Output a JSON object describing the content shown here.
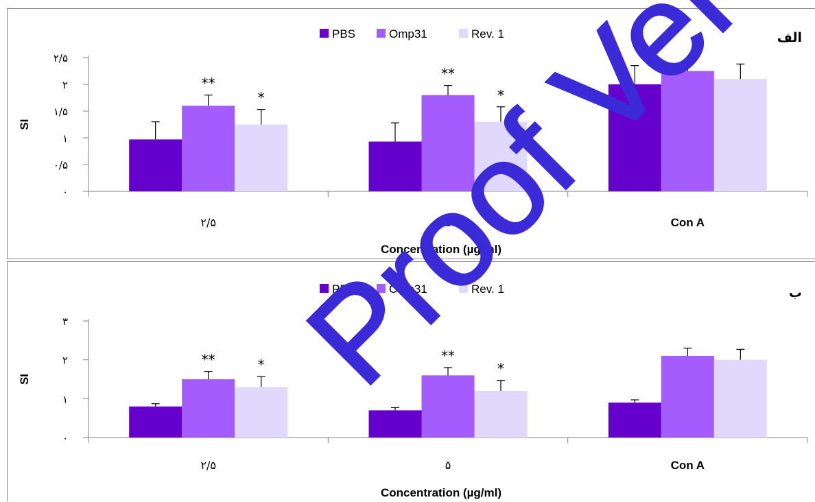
{
  "watermark": "Proof Version",
  "chart_data": [
    {
      "type": "bar",
      "panel_label": "الف",
      "categories": [
        "۲/۵",
        "۵",
        "Con A"
      ],
      "series": [
        {
          "name": "PBS",
          "color": "#6600cc",
          "values": [
            0.97,
            0.93,
            2.0
          ],
          "errors": [
            0.33,
            0.35,
            0.35
          ]
        },
        {
          "name": "Omp31",
          "color": "#a55cff",
          "values": [
            1.6,
            1.8,
            2.25
          ],
          "errors": [
            0.2,
            0.18,
            0.2
          ]
        },
        {
          "name": "Rev. 1",
          "color": "#e0d9fb",
          "values": [
            1.25,
            1.3,
            2.1
          ],
          "errors": [
            0.28,
            0.28,
            0.28
          ]
        }
      ],
      "significance": [
        {
          "category": 0,
          "series": 1,
          "mark": "**"
        },
        {
          "category": 0,
          "series": 2,
          "mark": "*"
        },
        {
          "category": 1,
          "series": 1,
          "mark": "**"
        },
        {
          "category": 1,
          "series": 2,
          "mark": "*"
        }
      ],
      "yticks": [
        {
          "v": 0,
          "t": "۰"
        },
        {
          "v": 0.5,
          "t": "۰/۵"
        },
        {
          "v": 1,
          "t": "۱"
        },
        {
          "v": 1.5,
          "t": "۱/۵"
        },
        {
          "v": 2,
          "t": "۲"
        },
        {
          "v": 2.5,
          "t": "۲/۵"
        }
      ],
      "ylim": [
        0,
        2.5
      ],
      "ylabel": "SI",
      "xlabel": "Concentration (µg/ml)",
      "legend_position": "top-center",
      "grid": false
    },
    {
      "type": "bar",
      "panel_label": "ب",
      "categories": [
        "۲/۵",
        "۵",
        "Con A"
      ],
      "series": [
        {
          "name": "PBS",
          "color": "#6600cc",
          "values": [
            0.8,
            0.7,
            0.9
          ],
          "errors": [
            0.07,
            0.07,
            0.07
          ]
        },
        {
          "name": "Omp31",
          "color": "#a55cff",
          "values": [
            1.5,
            1.6,
            2.1
          ],
          "errors": [
            0.2,
            0.2,
            0.2
          ]
        },
        {
          "name": "Rev. 1",
          "color": "#e0d9fb",
          "values": [
            1.3,
            1.2,
            2.0
          ],
          "errors": [
            0.27,
            0.27,
            0.27
          ]
        }
      ],
      "significance": [
        {
          "category": 0,
          "series": 1,
          "mark": "**"
        },
        {
          "category": 0,
          "series": 2,
          "mark": "*"
        },
        {
          "category": 1,
          "series": 1,
          "mark": "**"
        },
        {
          "category": 1,
          "series": 2,
          "mark": "*"
        }
      ],
      "yticks": [
        {
          "v": 0,
          "t": "۰"
        },
        {
          "v": 1,
          "t": "۱"
        },
        {
          "v": 2,
          "t": "۲"
        },
        {
          "v": 3,
          "t": "۳"
        }
      ],
      "ylim": [
        0,
        3
      ],
      "ylabel": "SI",
      "xlabel": "Concentration (µg/ml)",
      "legend_position": "top-center",
      "grid": false
    }
  ]
}
